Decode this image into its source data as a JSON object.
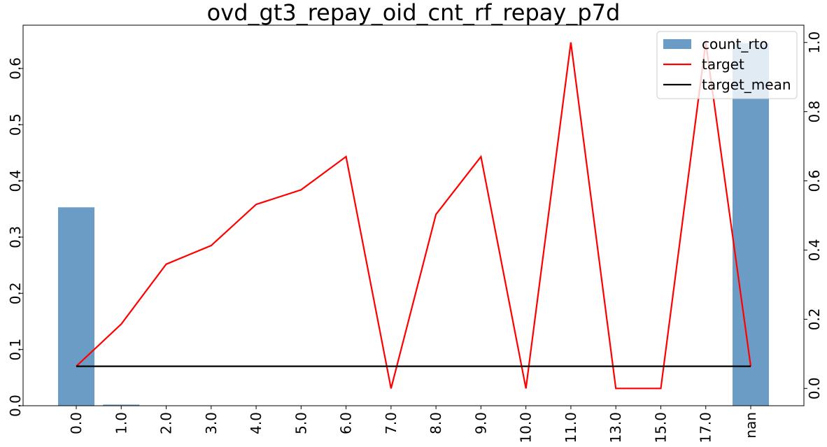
{
  "chart_data": {
    "type": "bar",
    "title": "ovd_gt3_repay_oid_cnt_rf_repay_p7d",
    "xlabel": "",
    "ylabel": "",
    "categories": [
      "0.0",
      "1.0",
      "2.0",
      "3.0",
      "4.0",
      "5.0",
      "6.0",
      "7.0",
      "8.0",
      "9.0",
      "10.0",
      "11.0",
      "13.0",
      "15.0",
      "17.0",
      "nan"
    ],
    "series": [
      {
        "name": "count_rto",
        "type": "bar",
        "axis": "left",
        "color": "#6a9cc6",
        "values": [
          0.353,
          0.002,
          0,
          0,
          0,
          0,
          0,
          0,
          0,
          0,
          0,
          0,
          0,
          0,
          0,
          0.645
        ]
      },
      {
        "name": "target",
        "type": "line",
        "axis": "right",
        "color": "#ff0000",
        "values": [
          0.064,
          0.186,
          0.359,
          0.413,
          0.532,
          0.574,
          0.67,
          0.0,
          0.503,
          0.67,
          0.0,
          1.0,
          0.0,
          0.0,
          1.0,
          0.064
        ]
      },
      {
        "name": "target_mean",
        "type": "line",
        "axis": "right",
        "color": "#000000",
        "values": [
          0.064,
          0.064,
          0.064,
          0.064,
          0.064,
          0.064,
          0.064,
          0.064,
          0.064,
          0.064,
          0.064,
          0.064,
          0.064,
          0.064,
          0.064,
          0.064
        ]
      }
    ],
    "y_left": {
      "ylim": [
        0,
        0.677
      ],
      "ticks": [
        0.0,
        0.1,
        0.2,
        0.3,
        0.4,
        0.5,
        0.6
      ],
      "tick_labels": [
        "0.0",
        "0.1",
        "0.2",
        "0.3",
        "0.4",
        "0.5",
        "0.6"
      ]
    },
    "y_right": {
      "ylim": [
        -0.05,
        1.05
      ],
      "ticks": [
        0.0,
        0.2,
        0.4,
        0.6,
        0.8,
        1.0
      ],
      "tick_labels": [
        "0.0",
        "0.2",
        "0.4",
        "0.6",
        "0.8",
        "1.0"
      ]
    },
    "grid": false,
    "legend_position": "top-right",
    "legend": [
      {
        "label": "count_rto",
        "kind": "bar",
        "color": "#6a9cc6"
      },
      {
        "label": "target",
        "kind": "line",
        "color": "#ff0000"
      },
      {
        "label": "target_mean",
        "kind": "line",
        "color": "#000000"
      }
    ]
  }
}
